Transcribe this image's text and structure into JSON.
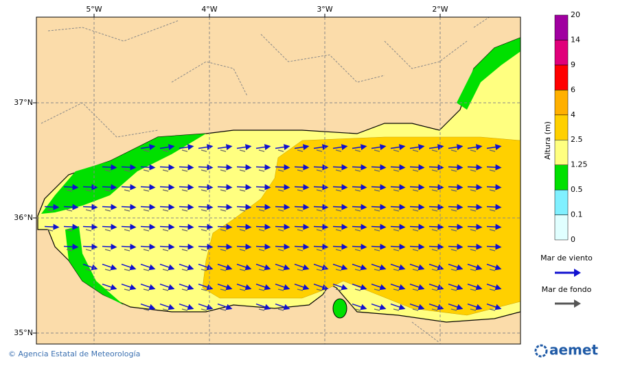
{
  "map": {
    "lon_labels": [
      "5°W",
      "4°W",
      "3°W",
      "2°W"
    ],
    "lat_labels": [
      "37°N",
      "36°N",
      "35°N"
    ],
    "colorbar": {
      "title": "Altura (m)",
      "levels": [
        0,
        0.1,
        0.5,
        1.25,
        2.5,
        4,
        6,
        9,
        14,
        20
      ],
      "colors": [
        "#e0ffff",
        "#80f0ff",
        "#00e000",
        "#ffff80",
        "#ffd000",
        "#ffb000",
        "#ff0000",
        "#e0007a",
        "#a000a0"
      ]
    },
    "legend": {
      "wind_sea": "Mar de viento",
      "swell": "Mar de fondo"
    },
    "footer": {
      "credit": "© Agencia Estatal de Meteorología",
      "logo": "aemet"
    }
  }
}
